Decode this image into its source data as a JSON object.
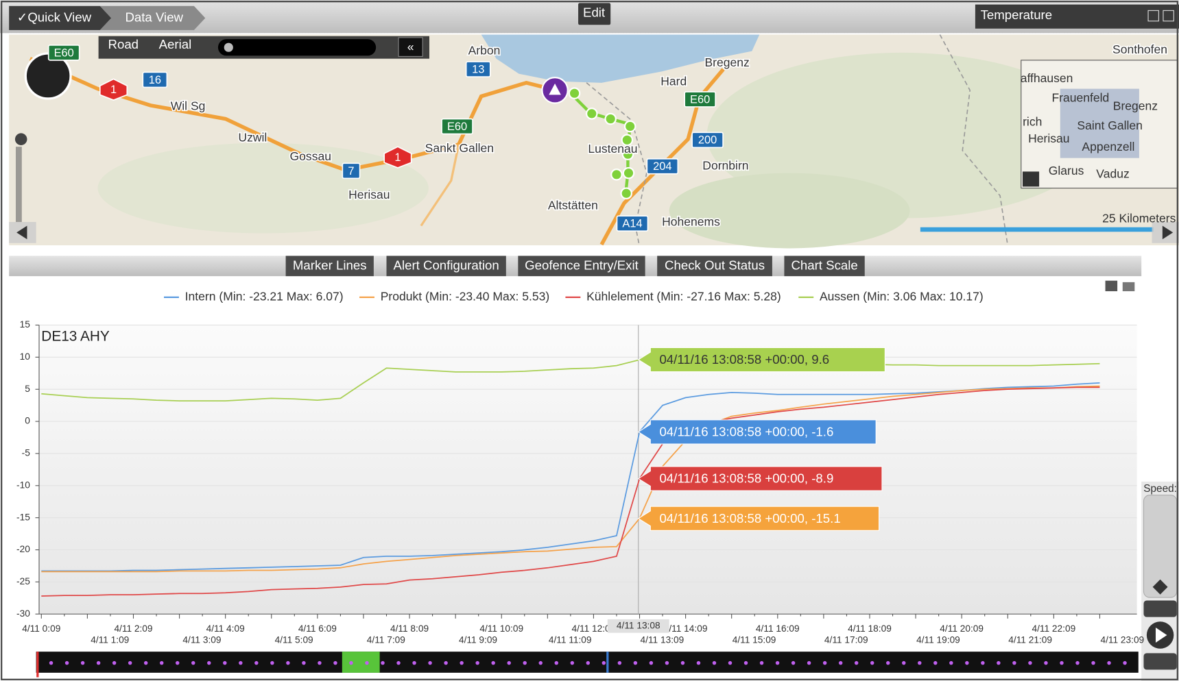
{
  "toolbar": {
    "tabs": [
      "✓Quick View",
      "Data View"
    ],
    "edit": "Edit",
    "panel_title": "Temperature"
  },
  "map": {
    "modes": [
      "Road",
      "Aerial"
    ],
    "places": [
      "Arbon",
      "Bregenz",
      "Hard",
      "Sonthofen",
      "Wil Sg",
      "Uzwil",
      "Gossau",
      "Sankt Gallen",
      "Lustenau",
      "Dornbirn",
      "Herisau",
      "Altstätten",
      "Hohenems"
    ],
    "shields": [
      "E60",
      "16",
      "1",
      "13",
      "E60",
      "E60",
      "7",
      "1",
      "200",
      "204",
      "A14"
    ],
    "inset": {
      "places": [
        "affhausen",
        "Frauenfeld",
        "Bregenz",
        "rich",
        "Saint Gallen",
        "Herisau",
        "Appenzell",
        "Glarus",
        "Vaduz"
      ]
    },
    "scale": "25 Kilometers"
  },
  "chart_buttons": [
    "Marker Lines",
    "Alert Configuration",
    "Geofence Entry/Exit",
    "Check Out Status",
    "Chart Scale"
  ],
  "speed_label": "Speed:",
  "chart_data": {
    "type": "line",
    "title": "DE13 AHY",
    "cursor_label": "4/11 13:08",
    "categories": [
      "4/11 0:09",
      null,
      "4/11 1:09",
      null,
      "4/11 2:09",
      null,
      "4/11 3:09",
      null,
      "4/11 4:09",
      null,
      "4/11 5:09",
      null,
      "4/11 6:09",
      null,
      "4/11 7:09",
      null,
      "4/11 8:09",
      null,
      "4/11 9:09",
      null,
      "4/11 10:09",
      null,
      "4/11 11:09",
      null,
      "4/11 12:09",
      null,
      "4/11 13:09",
      null,
      "4/11 14:09",
      null,
      "4/11 15:09",
      null,
      "4/11 16:09",
      null,
      "4/11 17:09",
      null,
      "4/11 18:09",
      null,
      "4/11 19:09",
      null,
      "4/11 20:09",
      null,
      "4/11 21:09",
      null,
      "4/11 22:09",
      null,
      "4/11 23:09"
    ],
    "series": [
      {
        "name": "Intern (Min: -23.21 Max: 6.07)",
        "color": "#5b9be0",
        "tooltip": "04/11/16 13:08:58 +00:00, -1.6",
        "tooltip_color": "#4a8fdc",
        "values": [
          -23.3,
          -23.3,
          -23.3,
          -23.3,
          -23.2,
          -23.2,
          -23.1,
          -23.0,
          -22.9,
          -22.8,
          -22.7,
          -22.6,
          -22.5,
          -22.4,
          -21.2,
          -21.0,
          -21.0,
          -20.9,
          -20.7,
          -20.5,
          -20.3,
          -20.0,
          -19.6,
          -19.1,
          -18.6,
          -17.8,
          -1.6,
          2.5,
          3.7,
          4.2,
          4.5,
          4.4,
          4.2,
          4.2,
          4.2,
          4.2,
          4.2,
          4.3,
          4.4,
          4.6,
          4.8,
          5.1,
          5.3,
          5.4,
          5.5,
          5.8,
          6.0
        ]
      },
      {
        "name": "Produkt (Min: -23.40 Max: 5.53)",
        "color": "#f5a24a",
        "tooltip": "04/11/16 13:08:58 +00:00, -15.1",
        "tooltip_color": "#f5a33c",
        "values": [
          -23.4,
          -23.4,
          -23.4,
          -23.4,
          -23.4,
          -23.4,
          -23.3,
          -23.3,
          -23.3,
          -23.2,
          -23.2,
          -23.1,
          -23.0,
          -22.8,
          -22.2,
          -21.8,
          -21.5,
          -21.2,
          -20.9,
          -20.7,
          -20.5,
          -20.3,
          -20.2,
          -19.9,
          -19.6,
          -19.5,
          -15.1,
          -7.0,
          -3.0,
          -0.5,
          0.8,
          1.3,
          1.7,
          2.2,
          2.7,
          3.1,
          3.5,
          3.9,
          4.2,
          4.5,
          4.8,
          5.0,
          5.1,
          5.2,
          5.2,
          5.4,
          5.5
        ]
      },
      {
        "name": "Kühlelement (Min: -27.16 Max: 5.28)",
        "color": "#e04848",
        "tooltip": "04/11/16 13:08:58 +00:00, -8.9",
        "tooltip_color": "#d9403e",
        "values": [
          -27.2,
          -27.1,
          -27.1,
          -27.0,
          -27.0,
          -26.9,
          -26.8,
          -26.8,
          -26.7,
          -26.5,
          -26.2,
          -26.1,
          -26.0,
          -25.8,
          -25.4,
          -25.3,
          -24.7,
          -24.5,
          -24.2,
          -23.9,
          -23.5,
          -23.2,
          -22.8,
          -22.3,
          -21.8,
          -21.0,
          -8.9,
          -3.5,
          -1.0,
          -0.2,
          0.5,
          1.0,
          1.5,
          1.9,
          2.2,
          2.6,
          3.0,
          3.4,
          3.8,
          4.2,
          4.5,
          4.8,
          5.0,
          5.1,
          5.2,
          5.3,
          5.3
        ]
      },
      {
        "name": "Aussen (Min: 3.06 Max: 10.17)",
        "color": "#a8cf52",
        "tooltip": "04/11/16 13:08:58 +00:00, 9.6",
        "tooltip_color": "#a8d14f",
        "values": [
          4.3,
          4.0,
          3.7,
          3.6,
          3.5,
          3.3,
          3.2,
          3.2,
          3.2,
          3.4,
          3.6,
          3.5,
          3.3,
          3.6,
          6.0,
          8.3,
          8.1,
          7.9,
          7.7,
          7.7,
          7.7,
          7.8,
          8.0,
          8.2,
          8.3,
          8.7,
          9.6,
          9.6,
          9.6,
          9.4,
          9.2,
          9.1,
          9.1,
          9.0,
          9.0,
          8.9,
          8.9,
          8.8,
          8.8,
          8.7,
          8.7,
          8.7,
          8.7,
          8.7,
          8.8,
          8.9,
          9.0
        ]
      }
    ],
    "ylim": [
      -30,
      15
    ],
    "yticks": [
      15,
      10,
      5,
      0,
      -5,
      -10,
      -15,
      -20,
      -25,
      -30
    ],
    "grid": true
  }
}
